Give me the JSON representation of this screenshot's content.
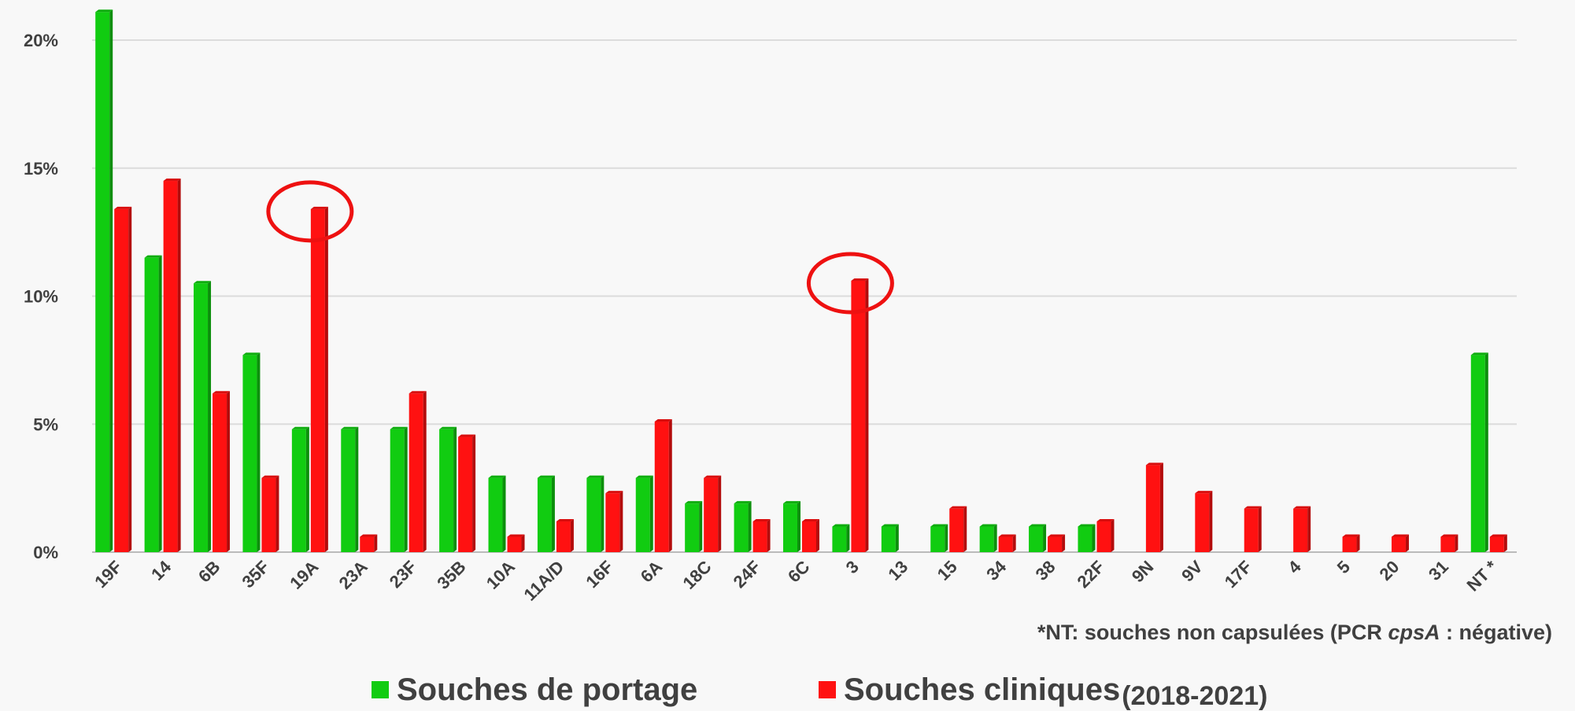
{
  "chart_data": {
    "type": "bar",
    "categories": [
      "19F",
      "14",
      "6B",
      "35F",
      "19A",
      "23A",
      "23F",
      "35B",
      "10A",
      "11A/D",
      "16F",
      "6A",
      "18C",
      "24F",
      "6C",
      "3",
      "13",
      "15",
      "34",
      "38",
      "22F",
      "9N",
      "9V",
      "17F",
      "4",
      "5",
      "20",
      "31",
      "NT *"
    ],
    "series": [
      {
        "name": "Souches de portage",
        "color": "#11cc11",
        "values": [
          21.1,
          11.5,
          10.5,
          7.7,
          4.8,
          4.8,
          4.8,
          4.8,
          2.9,
          2.9,
          2.9,
          2.9,
          1.9,
          1.9,
          1.9,
          1.0,
          1.0,
          1.0,
          1.0,
          1.0,
          1.0,
          0,
          0,
          0,
          0,
          0,
          0,
          0,
          7.7
        ]
      },
      {
        "name": "Souches cliniques",
        "color": "#ff1111",
        "values": [
          13.4,
          14.5,
          6.2,
          2.9,
          13.4,
          0.6,
          6.2,
          4.5,
          0.6,
          1.2,
          2.3,
          5.1,
          2.9,
          1.2,
          1.2,
          10.6,
          0,
          1.7,
          0.6,
          0.6,
          1.2,
          3.4,
          2.3,
          1.7,
          1.7,
          0.6,
          0.6,
          0.6,
          0.6
        ]
      }
    ],
    "legend_note": "(2018-2021)",
    "footnote": [
      "*NT: souches non capsulées (PCR ",
      "cpsA",
      " : négative)"
    ],
    "highlights": [
      "19A",
      "3"
    ],
    "ylim": [
      0,
      21.5
    ],
    "yticks": [
      {
        "value": 0,
        "label": "0%"
      },
      {
        "value": 5,
        "label": "5%"
      },
      {
        "value": 10,
        "label": "10%"
      },
      {
        "value": 15,
        "label": "15%"
      },
      {
        "value": 20,
        "label": "20%"
      }
    ],
    "grid": true
  }
}
